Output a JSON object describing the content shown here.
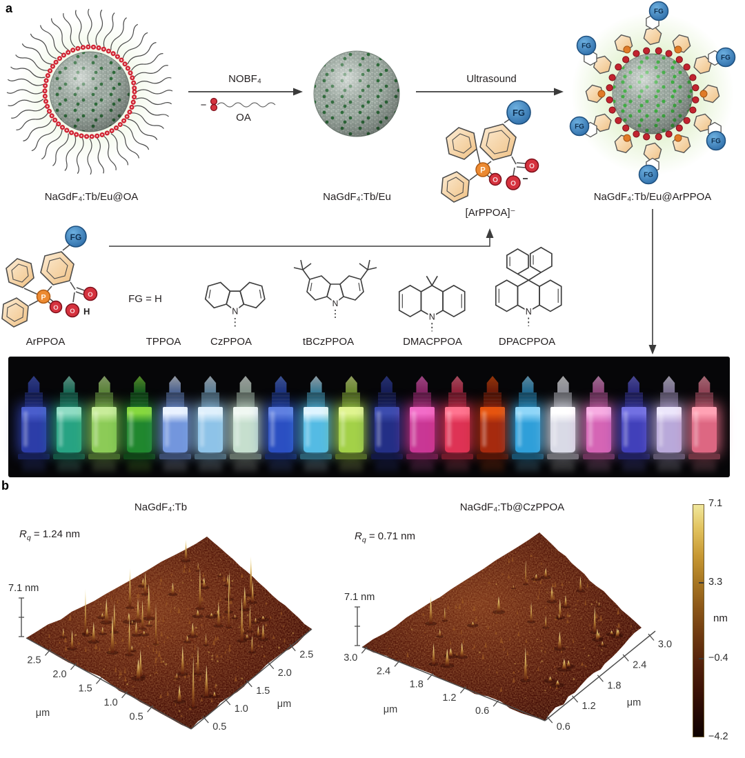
{
  "figure": {
    "panel_a_label": "a",
    "panel_b_label": "b"
  },
  "panel_a": {
    "particles": {
      "left_label": "NaGdF₄:Tb/Eu@OA",
      "middle_label": "NaGdF₄:Tb/Eu",
      "right_label": "NaGdF₄:Tb/Eu@ArPPOA"
    },
    "reaction": {
      "step1_reagent": "NOBF₄",
      "step1_minus": "−",
      "step1_byproduct": "OA",
      "step2": "Ultrasound"
    },
    "ligand": {
      "fg": "FG",
      "anion_label": "[ArPPOA]⁻",
      "p": "P",
      "o": "O",
      "h": "H",
      "n": "N",
      "minus": "−"
    },
    "structures": {
      "fg_equals": "FG = H",
      "names": [
        "ArPPOA",
        "TPPOA",
        "CzPPOA",
        "tBCzPPOA",
        "DMACPPOA",
        "DPACPPOA"
      ]
    },
    "vials": [
      {
        "body": "#2c3da8",
        "top": "#4a5ecc"
      },
      {
        "body": "#27a383",
        "top": "#8fdcc4"
      },
      {
        "body": "#8ccb57",
        "top": "#c8ec9a"
      },
      {
        "body": "#20872e",
        "top": "#86d83e"
      },
      {
        "body": "#7396dd",
        "top": "#eaf2ff"
      },
      {
        "body": "#8ec3e8",
        "top": "#dff0fc"
      },
      {
        "body": "#c6dfce",
        "top": "#f0f8f2"
      },
      {
        "body": "#2b4fc2",
        "top": "#6080e0"
      },
      {
        "body": "#54bbe4",
        "top": "#def4ff"
      },
      {
        "body": "#a3d148",
        "top": "#e0f490"
      },
      {
        "body": "#232f86",
        "top": "#3c4cae"
      },
      {
        "body": "#c93795",
        "top": "#f26cc8"
      },
      {
        "body": "#de3355",
        "top": "#ff7490"
      },
      {
        "body": "#a62a0e",
        "top": "#e6540f"
      },
      {
        "body": "#2f9fd9",
        "top": "#8fd6f8"
      },
      {
        "body": "#d9dae6",
        "top": "#ffffff"
      },
      {
        "body": "#d565b5",
        "top": "#f7ace2"
      },
      {
        "body": "#4140ba",
        "top": "#7270e2"
      },
      {
        "body": "#b9a9da",
        "top": "#ece6fb"
      },
      {
        "body": "#dd6782",
        "top": "#ffa2b4"
      }
    ]
  },
  "panel_b": {
    "plots": [
      {
        "title": "NaGdF₄:Tb",
        "rq_symbol": "R",
        "rq_sub": "q",
        "rq_value": " = 1.24 nm",
        "z_max_label": "7.1 nm",
        "axis_left": {
          "ticks": [
            "2.5",
            "2.0",
            "1.5",
            "1.0",
            "0.5"
          ],
          "unit": "μm"
        },
        "axis_right": {
          "ticks": [
            "0.5",
            "1.0",
            "1.5",
            "2.0",
            "2.5"
          ],
          "unit": "μm"
        }
      },
      {
        "title": "NaGdF₄:Tb@CzPPOA",
        "rq_symbol": "R",
        "rq_sub": "q",
        "rq_value": " = 0.71 nm",
        "z_max_label": "7.1 nm",
        "axis_left": {
          "ticks": [
            "3.0",
            "2.4",
            "1.8",
            "1.2",
            "0.6"
          ],
          "unit": "μm"
        },
        "axis_right": {
          "ticks": [
            "0.6",
            "1.2",
            "1.8",
            "2.4",
            "3.0"
          ],
          "unit": "μm"
        }
      }
    ],
    "colorbar": {
      "ticks": [
        "7.1",
        "3.3",
        "−0.4",
        "−4.2"
      ],
      "unit": "nm"
    }
  },
  "chart_data": [
    {
      "type": "heatmap",
      "title": "NaGdF₄:Tb",
      "description": "AFM 3D surface topography, many sharp peaks",
      "roughness_rq_nm": 1.24,
      "x_ticks_um": [
        0.5,
        1.0,
        1.5,
        2.0,
        2.5
      ],
      "y_ticks_um": [
        0.5,
        1.0,
        1.5,
        2.0,
        2.5
      ],
      "z_axis_max_nm": 7.1,
      "colorbar_ticks_nm": [
        7.1,
        3.3,
        -0.4,
        -4.2
      ],
      "colorbar_unit": "nm"
    },
    {
      "type": "heatmap",
      "title": "NaGdF₄:Tb@CzPPOA",
      "description": "AFM 3D surface topography, smoother with fewer peaks",
      "roughness_rq_nm": 0.71,
      "x_ticks_um": [
        0.6,
        1.2,
        1.8,
        2.4,
        3.0
      ],
      "y_ticks_um": [
        0.6,
        1.2,
        1.8,
        2.4,
        3.0
      ],
      "z_axis_max_nm": 7.1,
      "colorbar_ticks_nm": [
        7.1,
        3.3,
        -0.4,
        -4.2
      ],
      "colorbar_unit": "nm"
    }
  ]
}
